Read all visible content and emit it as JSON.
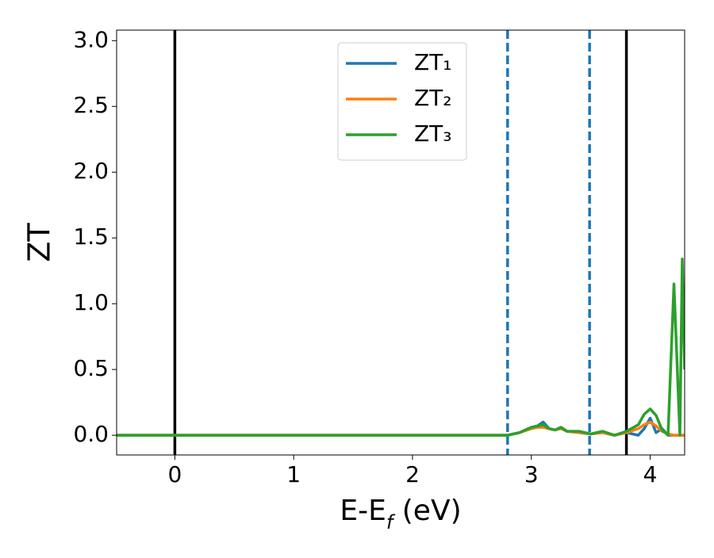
{
  "chart_data": {
    "type": "line",
    "xlabel": {
      "main": "E-E",
      "sub": "f",
      "rest": " (eV)"
    },
    "ylabel": "ZT",
    "x": [
      -0.49,
      2.7,
      2.8,
      2.9,
      3.0,
      3.05,
      3.1,
      3.15,
      3.2,
      3.25,
      3.3,
      3.4,
      3.5,
      3.6,
      3.7,
      3.8,
      3.9,
      3.95,
      4.0,
      4.05,
      4.1,
      4.15,
      4.2,
      4.25,
      4.27,
      4.29
    ],
    "series": [
      {
        "name": "ZT₁",
        "color": "#1f77b4",
        "values": [
          0,
          0,
          0,
          0.02,
          0.06,
          0.07,
          0.1,
          0.05,
          0.04,
          0.06,
          0.03,
          0.02,
          0.01,
          0.02,
          0,
          0.02,
          0,
          0.05,
          0.13,
          0.02,
          0.05,
          0,
          0,
          0,
          0,
          0
        ]
      },
      {
        "name": "ZT₂",
        "color": "#ff7f0e",
        "values": [
          0,
          0,
          0,
          0.02,
          0.05,
          0.06,
          0.06,
          0.05,
          0.04,
          0.05,
          0.03,
          0.02,
          0.01,
          0.02,
          0,
          0.02,
          0.05,
          0.08,
          0.1,
          0.07,
          0.03,
          0.01,
          0,
          0,
          0,
          0
        ]
      },
      {
        "name": "ZT₃",
        "color": "#2ca02c",
        "values": [
          0,
          0,
          0,
          0.02,
          0.06,
          0.07,
          0.08,
          0.05,
          0.04,
          0.06,
          0.03,
          0.03,
          0.01,
          0.03,
          0,
          0.03,
          0.08,
          0.16,
          0.2,
          0.15,
          0.04,
          0,
          1.15,
          0,
          1.34,
          0.5
        ]
      }
    ],
    "vlines": [
      {
        "x": 0,
        "color": "#000000",
        "dashed": false
      },
      {
        "x": 2.8,
        "color": "#1f77b4",
        "dashed": true
      },
      {
        "x": 3.49,
        "color": "#1f77b4",
        "dashed": true
      },
      {
        "x": 3.8,
        "color": "#000000",
        "dashed": false
      }
    ],
    "xlim": [
      -0.49,
      4.29
    ],
    "xticks": [
      0,
      1,
      2,
      3,
      4
    ],
    "ylim": [
      -0.15,
      3.08
    ],
    "yticks": [
      {
        "value": 0,
        "label": "0.0"
      },
      {
        "value": 0.5,
        "label": "0.5"
      },
      {
        "value": 1,
        "label": "1.0"
      },
      {
        "value": 1.5,
        "label": "1.5"
      },
      {
        "value": 2,
        "label": "2.0"
      },
      {
        "value": 2.5,
        "label": "2.5"
      },
      {
        "value": 3,
        "label": "3.0"
      }
    ],
    "legend": "upper center"
  }
}
